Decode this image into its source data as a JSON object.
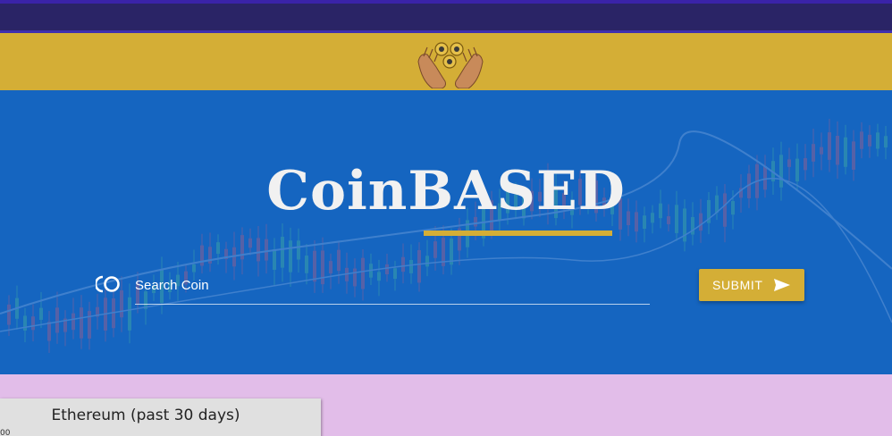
{
  "header": {
    "logo_icon": "hands-holding-coins-icon"
  },
  "hero": {
    "title": "CoinBASED",
    "accent_color": "#d4ae36",
    "background_color": "#1565c0",
    "search": {
      "icon": "coin-ring-icon",
      "placeholder": "Search Coin",
      "value": ""
    },
    "submit": {
      "label": "SUBMIT",
      "icon": "send-icon"
    }
  },
  "chart_card": {
    "title": "Ethereum (past 30 days)",
    "tick_label": "00"
  }
}
